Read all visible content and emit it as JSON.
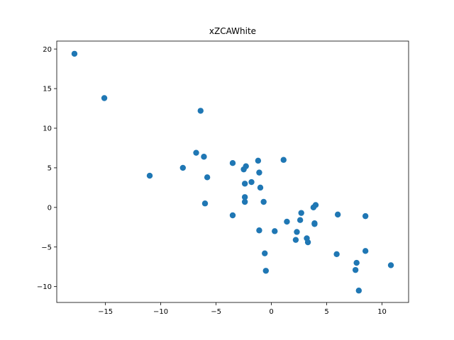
{
  "chart_data": {
    "type": "scatter",
    "title": "xZCAWhite",
    "xlabel": "",
    "ylabel": "",
    "xlim": [
      -19.4,
      12.4
    ],
    "ylim": [
      -12.0,
      21.0
    ],
    "xticks": [
      -15,
      -10,
      -5,
      0,
      5,
      10
    ],
    "yticks": [
      -10,
      -5,
      0,
      5,
      10,
      15,
      20
    ],
    "xtick_labels": [
      "−15",
      "−10",
      "−5",
      "0",
      "5",
      "10"
    ],
    "ytick_labels": [
      "−10",
      "−5",
      "0",
      "5",
      "10",
      "15",
      "20"
    ],
    "grid": false,
    "marker_color": "#1f77b4",
    "points": [
      {
        "x": -17.8,
        "y": 19.4
      },
      {
        "x": -15.1,
        "y": 13.8
      },
      {
        "x": -6.4,
        "y": 12.2
      },
      {
        "x": -6.8,
        "y": 6.9
      },
      {
        "x": -6.1,
        "y": 6.4
      },
      {
        "x": -11.0,
        "y": 4.0
      },
      {
        "x": -8.0,
        "y": 5.0
      },
      {
        "x": -5.8,
        "y": 3.8
      },
      {
        "x": -6.0,
        "y": 0.5
      },
      {
        "x": -3.5,
        "y": 5.6
      },
      {
        "x": -2.5,
        "y": 4.8
      },
      {
        "x": -2.3,
        "y": 5.2
      },
      {
        "x": -1.2,
        "y": 5.9
      },
      {
        "x": -1.1,
        "y": 4.4
      },
      {
        "x": 1.1,
        "y": 6.0
      },
      {
        "x": -1.8,
        "y": 3.2
      },
      {
        "x": -2.4,
        "y": 3.0
      },
      {
        "x": -1.0,
        "y": 2.5
      },
      {
        "x": -2.4,
        "y": 1.3
      },
      {
        "x": -2.4,
        "y": 0.7
      },
      {
        "x": -0.7,
        "y": 0.7
      },
      {
        "x": -3.5,
        "y": -1.0
      },
      {
        "x": -1.1,
        "y": -2.9
      },
      {
        "x": 0.3,
        "y": -3.0
      },
      {
        "x": -0.6,
        "y": -5.8
      },
      {
        "x": -0.5,
        "y": -8.0
      },
      {
        "x": 1.4,
        "y": -1.8
      },
      {
        "x": 2.7,
        "y": -0.7
      },
      {
        "x": 3.8,
        "y": 0.0
      },
      {
        "x": 4.0,
        "y": 0.3
      },
      {
        "x": 2.6,
        "y": -1.6
      },
      {
        "x": 3.9,
        "y": -2.0
      },
      {
        "x": 3.9,
        "y": -2.1
      },
      {
        "x": 2.3,
        "y": -3.1
      },
      {
        "x": 2.2,
        "y": -4.1
      },
      {
        "x": 3.2,
        "y": -3.9
      },
      {
        "x": 3.3,
        "y": -4.4
      },
      {
        "x": 6.0,
        "y": -0.9
      },
      {
        "x": 8.5,
        "y": -1.1
      },
      {
        "x": 5.9,
        "y": -5.9
      },
      {
        "x": 8.5,
        "y": -5.5
      },
      {
        "x": 7.7,
        "y": -7.0
      },
      {
        "x": 7.6,
        "y": -7.9
      },
      {
        "x": 7.9,
        "y": -10.5
      },
      {
        "x": 10.8,
        "y": -7.3
      }
    ]
  }
}
